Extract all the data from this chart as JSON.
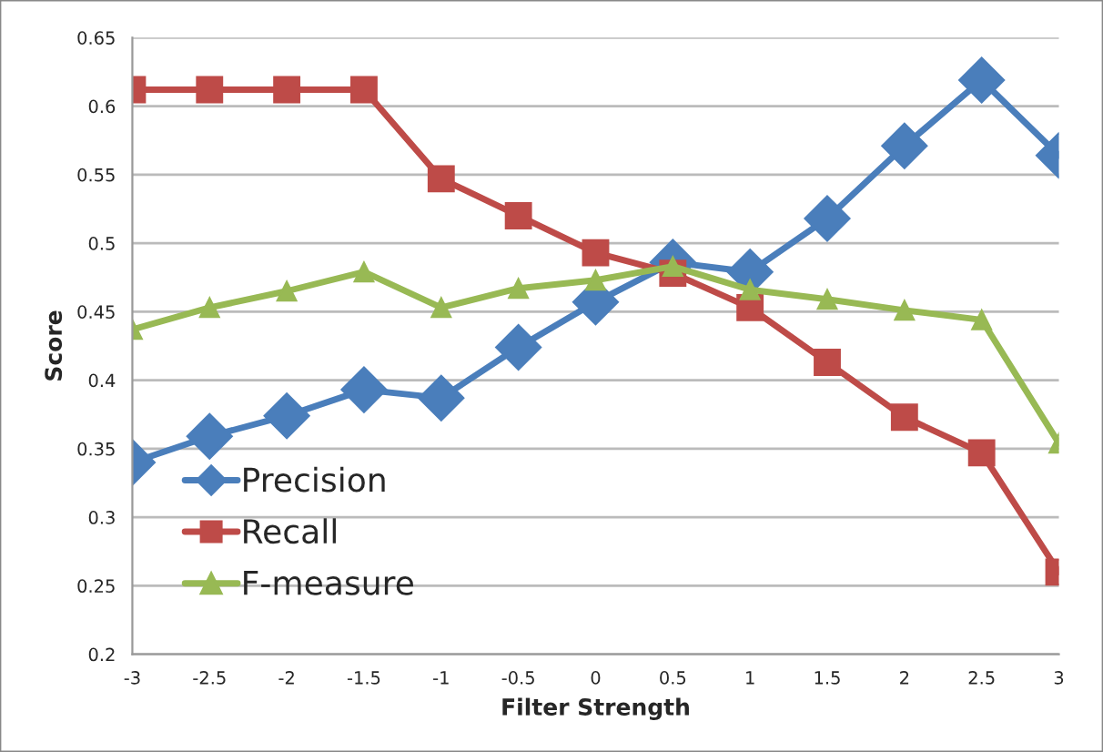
{
  "chart_data": {
    "type": "line",
    "xlabel": "Filter Strength",
    "ylabel": "Score",
    "x": [
      -3,
      -2.5,
      -2,
      -1.5,
      -1,
      -0.5,
      0,
      0.5,
      1,
      1.5,
      2,
      2.5,
      3
    ],
    "series": [
      {
        "name": "Precision",
        "color": "#4a7ebb",
        "marker": "diamond",
        "values": [
          0.34,
          0.359,
          0.374,
          0.393,
          0.387,
          0.424,
          0.457,
          0.486,
          0.479,
          0.518,
          0.571,
          0.619,
          0.564
        ]
      },
      {
        "name": "Recall",
        "color": "#be4b48",
        "marker": "square",
        "values": [
          0.612,
          0.612,
          0.612,
          0.612,
          0.547,
          0.52,
          0.493,
          0.478,
          0.453,
          0.413,
          0.373,
          0.347,
          0.26
        ]
      },
      {
        "name": "F-measure",
        "color": "#98b954",
        "marker": "triangle",
        "values": [
          0.437,
          0.453,
          0.465,
          0.479,
          0.453,
          0.467,
          0.473,
          0.483,
          0.466,
          0.459,
          0.451,
          0.444,
          0.354
        ]
      }
    ],
    "xlim": [
      -3,
      3
    ],
    "xticks": [
      -3,
      -2.5,
      -2,
      -1.5,
      -1,
      -0.5,
      0,
      0.5,
      1,
      1.5,
      2,
      2.5,
      3
    ],
    "ylim": [
      0.2,
      0.65
    ],
    "yticks": [
      0.2,
      0.25,
      0.3,
      0.35,
      0.4,
      0.45,
      0.5,
      0.55,
      0.6,
      0.65
    ],
    "grid": "y",
    "legend": "bottom left",
    "line_style": "solid"
  }
}
